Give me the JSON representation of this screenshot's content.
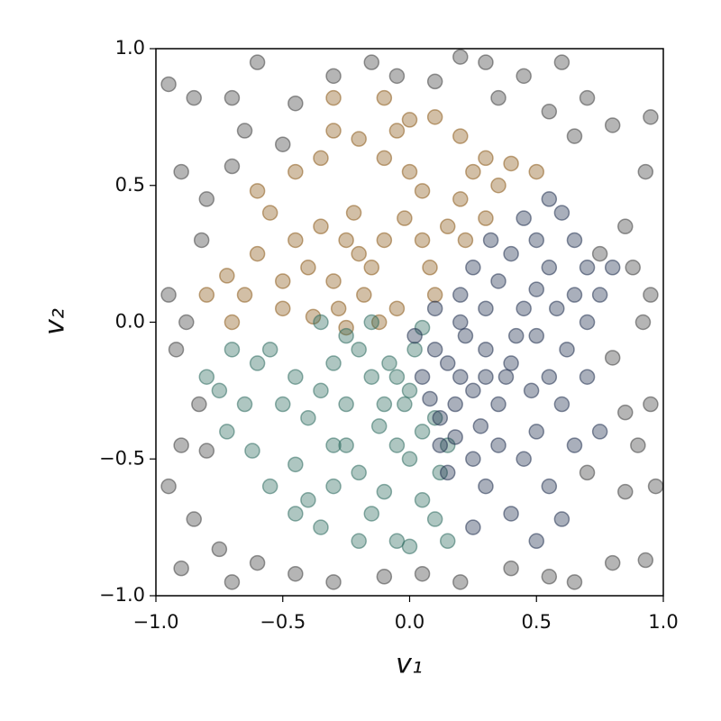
{
  "chart_data": {
    "type": "scatter",
    "xlabel": "v₁",
    "ylabel": "v₂",
    "xlim": [
      -1,
      1
    ],
    "ylim": [
      -1,
      1
    ],
    "xticks": [
      {
        "value": -1,
        "label": "−1.0"
      },
      {
        "value": -0.5,
        "label": "−0.5"
      },
      {
        "value": 0,
        "label": "0.0"
      },
      0.5,
      {
        "value": 1,
        "label": "1.0"
      }
    ],
    "yticks": [
      {
        "value": -1,
        "label": "−1.0"
      },
      {
        "value": -0.5,
        "label": "−0.5"
      },
      {
        "value": 0,
        "label": "0.0"
      },
      0.5,
      {
        "value": 1,
        "label": "1.0"
      }
    ],
    "alpha": 0.3,
    "series": [
      {
        "color": "#404040",
        "x": [
          -0.95,
          -0.85,
          -0.7,
          -0.6,
          -0.9,
          -0.8,
          -0.7,
          -0.82,
          -0.95,
          -0.88,
          -0.92,
          -0.83,
          -0.9,
          -0.8,
          -0.95,
          -0.85,
          -0.75,
          -0.9,
          -0.7,
          -0.6,
          -0.45,
          -0.3,
          -0.1,
          0.05,
          0.2,
          0.4,
          0.55,
          0.65,
          0.8,
          0.93,
          0.97,
          0.85,
          0.9,
          0.7,
          0.95,
          0.85,
          0.8,
          0.92,
          0.95,
          0.88,
          0.75,
          0.85,
          0.93,
          0.8,
          0.7,
          0.6,
          0.45,
          0.3,
          0.35,
          0.2,
          0.1,
          -0.05,
          -0.15,
          -0.3,
          -0.45,
          -0.5,
          -0.65,
          0.55,
          0.65,
          0.95
        ],
        "y": [
          0.87,
          0.82,
          0.82,
          0.95,
          0.55,
          0.45,
          0.57,
          0.3,
          0.1,
          0.0,
          -0.1,
          -0.3,
          -0.45,
          -0.47,
          -0.6,
          -0.72,
          -0.83,
          -0.9,
          -0.95,
          -0.88,
          -0.92,
          -0.95,
          -0.93,
          -0.92,
          -0.95,
          -0.9,
          -0.93,
          -0.95,
          -0.88,
          -0.87,
          -0.6,
          -0.62,
          -0.45,
          -0.55,
          -0.3,
          -0.33,
          -0.13,
          0.0,
          0.1,
          0.2,
          0.25,
          0.35,
          0.55,
          0.72,
          0.82,
          0.95,
          0.9,
          0.95,
          0.82,
          0.97,
          0.88,
          0.9,
          0.95,
          0.9,
          0.8,
          0.65,
          0.7,
          0.77,
          0.68,
          0.75
        ]
      },
      {
        "color": "#8c5a1a",
        "x": [
          -0.2,
          -0.25,
          -0.15,
          -0.3,
          -0.1,
          -0.22,
          -0.35,
          -0.18,
          -0.28,
          -0.4,
          -0.45,
          -0.5,
          -0.6,
          -0.65,
          -0.8,
          -0.72,
          -0.55,
          -0.6,
          -0.45,
          -0.35,
          -0.3,
          -0.2,
          -0.1,
          0.0,
          0.05,
          -0.05,
          0.1,
          0.2,
          0.25,
          0.3,
          0.4,
          0.5,
          0.35,
          0.2,
          0.15,
          0.05,
          -0.02,
          0.08,
          0.22,
          0.1,
          -0.05,
          -0.12,
          -0.25,
          -0.38,
          -0.7,
          -0.3,
          -0.1,
          0.0,
          0.3,
          -0.5
        ],
        "y": [
          0.25,
          0.3,
          0.2,
          0.15,
          0.3,
          0.4,
          0.35,
          0.1,
          0.05,
          0.2,
          0.3,
          0.15,
          0.25,
          0.1,
          0.1,
          0.17,
          0.4,
          0.48,
          0.55,
          0.6,
          0.7,
          0.67,
          0.6,
          0.55,
          0.48,
          0.7,
          0.75,
          0.68,
          0.55,
          0.6,
          0.58,
          0.55,
          0.5,
          0.45,
          0.35,
          0.3,
          0.38,
          0.2,
          0.3,
          0.1,
          0.05,
          0.0,
          -0.02,
          0.02,
          0.0,
          0.82,
          0.82,
          0.74,
          0.38,
          0.05
        ]
      },
      {
        "color": "#2e6b60",
        "x": [
          -0.05,
          0.0,
          -0.02,
          -0.08,
          0.02,
          -0.1,
          -0.15,
          -0.2,
          -0.25,
          -0.3,
          -0.35,
          -0.4,
          -0.45,
          -0.5,
          -0.55,
          -0.6,
          -0.7,
          -0.75,
          -0.65,
          -0.72,
          -0.62,
          -0.55,
          -0.45,
          -0.4,
          -0.35,
          -0.3,
          -0.25,
          -0.2,
          -0.15,
          -0.1,
          -0.05,
          0.0,
          0.05,
          0.1,
          0.12,
          0.15,
          0.1,
          0.05,
          -0.05,
          -0.12,
          -0.25,
          -0.3,
          0.0,
          0.15,
          -0.2,
          -0.45,
          -0.8,
          -0.35,
          -0.15,
          0.05
        ],
        "y": [
          -0.2,
          -0.25,
          -0.3,
          -0.15,
          -0.1,
          -0.3,
          -0.2,
          -0.1,
          -0.05,
          -0.15,
          -0.25,
          -0.35,
          -0.2,
          -0.3,
          -0.1,
          -0.15,
          -0.1,
          -0.25,
          -0.3,
          -0.4,
          -0.47,
          -0.6,
          -0.52,
          -0.65,
          -0.75,
          -0.6,
          -0.45,
          -0.55,
          -0.7,
          -0.62,
          -0.8,
          -0.5,
          -0.65,
          -0.72,
          -0.55,
          -0.45,
          -0.35,
          -0.4,
          -0.45,
          -0.38,
          -0.3,
          -0.45,
          -0.82,
          -0.8,
          -0.8,
          -0.7,
          -0.2,
          0.0,
          0.0,
          -0.02
        ]
      },
      {
        "color": "#22304f",
        "x": [
          0.2,
          0.15,
          0.25,
          0.1,
          0.18,
          0.3,
          0.05,
          0.12,
          0.22,
          0.35,
          0.4,
          0.3,
          0.2,
          0.1,
          0.45,
          0.5,
          0.55,
          0.6,
          0.65,
          0.5,
          0.45,
          0.35,
          0.25,
          0.15,
          0.3,
          0.4,
          0.55,
          0.6,
          0.5,
          0.25,
          0.7,
          0.75,
          0.7,
          0.65,
          0.55,
          0.5,
          0.45,
          0.6,
          0.55,
          0.4,
          0.35,
          0.25,
          0.7,
          0.75,
          0.8,
          0.65,
          0.58,
          0.42,
          0.28,
          0.08,
          0.02,
          0.18,
          0.5,
          0.62,
          0.38,
          0.32,
          0.48,
          0.2,
          0.12,
          0.3
        ],
        "y": [
          -0.2,
          -0.15,
          -0.25,
          -0.1,
          -0.3,
          -0.1,
          -0.2,
          -0.35,
          -0.05,
          -0.3,
          -0.15,
          0.05,
          0.1,
          0.05,
          0.05,
          -0.05,
          -0.2,
          -0.3,
          -0.45,
          -0.4,
          -0.5,
          -0.45,
          -0.5,
          -0.55,
          -0.6,
          -0.7,
          -0.6,
          -0.72,
          -0.8,
          -0.75,
          -0.2,
          -0.4,
          0.0,
          0.1,
          0.2,
          0.3,
          0.38,
          0.4,
          0.45,
          0.25,
          0.15,
          0.2,
          0.2,
          0.1,
          0.2,
          0.3,
          0.05,
          -0.05,
          -0.38,
          -0.28,
          -0.05,
          -0.42,
          0.12,
          -0.1,
          -0.2,
          0.3,
          -0.25,
          0.0,
          -0.45,
          -0.2
        ]
      }
    ]
  }
}
